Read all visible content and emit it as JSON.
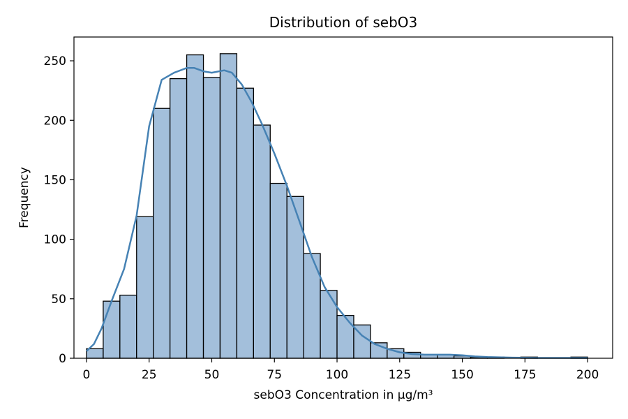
{
  "chart_data": {
    "type": "bar",
    "title": "Distribution of sebO3",
    "xlabel": "sebO3 Concentration in μg/m³",
    "ylabel": "Frequency",
    "xlim": [
      -5,
      210
    ],
    "ylim": [
      0,
      270
    ],
    "xticks": [
      0,
      25,
      50,
      75,
      100,
      125,
      150,
      175,
      200
    ],
    "yticks": [
      0,
      50,
      100,
      150,
      200,
      250
    ],
    "bin_width": 6.67,
    "bin_edges": [
      0,
      6.67,
      13.33,
      20,
      26.67,
      33.33,
      40,
      46.67,
      53.33,
      60,
      66.67,
      73.33,
      80,
      86.67,
      93.33,
      100,
      106.67,
      113.33,
      120,
      126.67,
      133.33,
      140,
      146.67,
      153.33,
      160,
      166.67,
      173.33,
      180,
      186.67,
      193.33,
      200
    ],
    "values": [
      8,
      48,
      53,
      119,
      210,
      235,
      255,
      236,
      256,
      227,
      196,
      147,
      136,
      88,
      57,
      36,
      28,
      13,
      8,
      5,
      3,
      3,
      2,
      1,
      1,
      0,
      1,
      0,
      0,
      1
    ],
    "kde": {
      "x": [
        0,
        3,
        6,
        10,
        15,
        20,
        25,
        30,
        35,
        40,
        43,
        47,
        50,
        55,
        58,
        62,
        66,
        70,
        75,
        80,
        85,
        90,
        95,
        100,
        105,
        110,
        115,
        120,
        125,
        130,
        135,
        140,
        145,
        150,
        155,
        160,
        170,
        180,
        190,
        200
      ],
      "y": [
        6,
        12,
        25,
        48,
        75,
        120,
        195,
        234,
        240,
        244,
        244,
        241,
        240,
        242,
        240,
        230,
        215,
        197,
        172,
        145,
        115,
        85,
        60,
        43,
        30,
        19,
        12,
        8,
        5,
        3.5,
        3,
        3,
        3,
        2.5,
        1.5,
        1,
        0.5,
        0.3,
        0.3,
        0.3
      ]
    },
    "colors": {
      "bar_fill": "#a3bfdb",
      "bar_edge": "#000000",
      "kde_line": "#4682b4"
    },
    "grid": false,
    "legend": "none"
  }
}
